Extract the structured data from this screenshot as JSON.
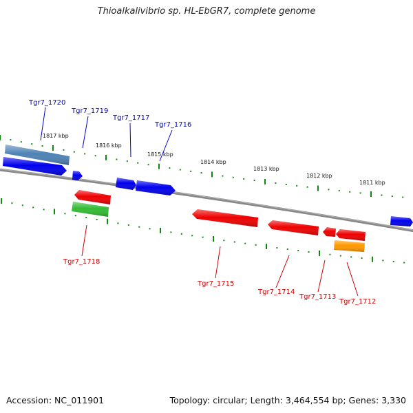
{
  "title": "Thioalkalivibrio sp. HL-EbGR7, complete genome",
  "footer": {
    "accession": "Accession: NC_011901",
    "summary": "Topology: circular; Length: 3,464,554 bp; Genes: 3,330"
  },
  "colors": {
    "forward_label": "#0000cc",
    "reverse_label": "#cc0000",
    "tick": "#118811",
    "backbone": "#888888",
    "blue": "#0000ee",
    "steelblue": "#4f82b5",
    "red": "#ee0000",
    "green": "#33bb33",
    "orange": "#ff9900"
  },
  "scale_labels": [
    "1817 kbp",
    "1816 kbp",
    "1815 kbp",
    "1814 kbp",
    "1813 kbp",
    "1812 kbp",
    "1811 kbp"
  ],
  "genes": [
    {
      "id": "g1720a",
      "name": "Tgr7_1720",
      "strand": "forward",
      "color": "steelblue",
      "labeled": true
    },
    {
      "id": "g1720b",
      "name": "",
      "strand": "forward",
      "color": "blue",
      "labeled": false
    },
    {
      "id": "g1719",
      "name": "Tgr7_1719",
      "strand": "forward",
      "color": "blue",
      "labeled": true
    },
    {
      "id": "g1717",
      "name": "Tgr7_1717",
      "strand": "forward",
      "color": "blue",
      "labeled": true
    },
    {
      "id": "g1716",
      "name": "Tgr7_1716",
      "strand": "forward",
      "color": "blue",
      "labeled": true
    },
    {
      "id": "g1718a",
      "name": "Tgr7_1718",
      "strand": "reverse",
      "color": "green",
      "labeled": true
    },
    {
      "id": "g1718b",
      "name": "",
      "strand": "reverse",
      "color": "red",
      "labeled": false
    },
    {
      "id": "g1715",
      "name": "Tgr7_1715",
      "strand": "reverse",
      "color": "red",
      "labeled": true
    },
    {
      "id": "g1714",
      "name": "Tgr7_1714",
      "strand": "reverse",
      "color": "red",
      "labeled": true
    },
    {
      "id": "g1713",
      "name": "Tgr7_1713",
      "strand": "reverse",
      "color": "red",
      "labeled": true
    },
    {
      "id": "g1712a",
      "name": "Tgr7_1712",
      "strand": "reverse",
      "color": "red",
      "labeled": true
    },
    {
      "id": "g1712b",
      "name": "",
      "strand": "reverse",
      "color": "orange",
      "labeled": false
    },
    {
      "id": "gEdge",
      "name": "",
      "strand": "forward",
      "color": "blue",
      "labeled": false
    }
  ]
}
